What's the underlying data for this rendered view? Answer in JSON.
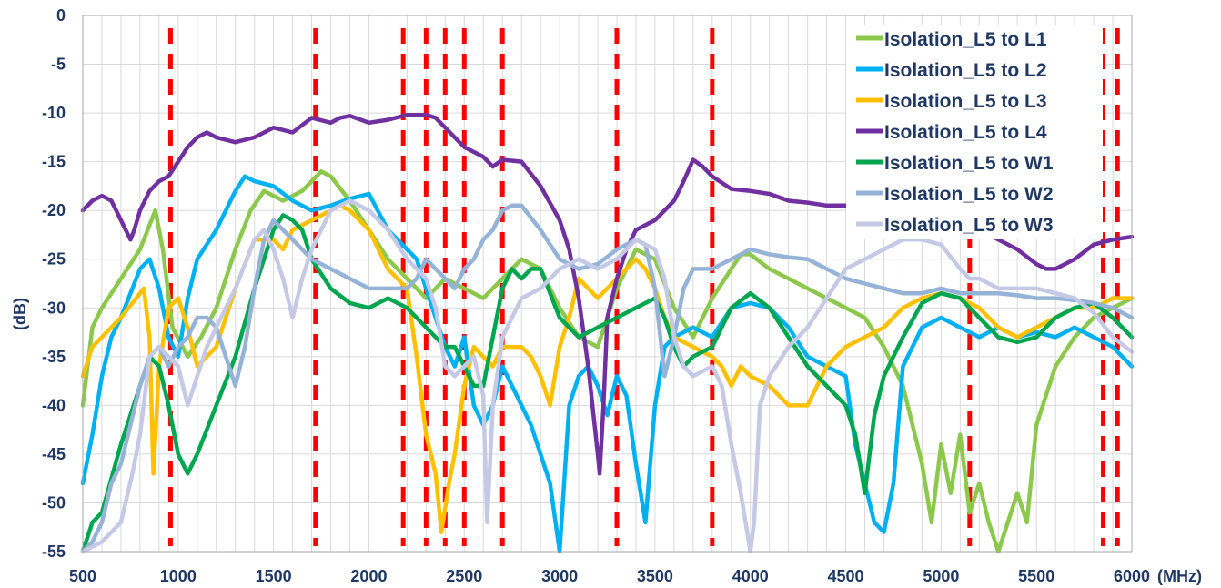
{
  "chart_data": {
    "type": "line",
    "xlabel": "(MHz)",
    "ylabel": "(dB)",
    "xlim": [
      500,
      6000
    ],
    "ylim": [
      -55,
      0
    ],
    "x_ticks": [
      500,
      1000,
      1500,
      2000,
      2500,
      3000,
      3500,
      4000,
      4500,
      5000,
      5500,
      6000
    ],
    "y_ticks": [
      0,
      -5,
      -10,
      -15,
      -20,
      -25,
      -30,
      -35,
      -40,
      -45,
      -50,
      -55
    ],
    "grid": true,
    "legend_position": "top-right",
    "band_markers_mhz": [
      960,
      1720,
      2180,
      2300,
      2400,
      2500,
      2700,
      3300,
      3800,
      5150,
      5850,
      5925
    ],
    "band_marker_color": "#ff0000",
    "series": [
      {
        "name": "Isolation_L5 to L1",
        "color": "#8cc84b",
        "x": [
          500,
          550,
          600,
          700,
          800,
          880,
          920,
          970,
          1050,
          1120,
          1200,
          1300,
          1380,
          1450,
          1550,
          1650,
          1700,
          1750,
          1800,
          1900,
          2000,
          2100,
          2200,
          2300,
          2400,
          2500,
          2600,
          2700,
          2800,
          2900,
          3000,
          3100,
          3200,
          3300,
          3400,
          3500,
          3600,
          3700,
          3800,
          3900,
          3950,
          4000,
          4100,
          4200,
          4300,
          4400,
          4500,
          4600,
          4700,
          4800,
          4900,
          4950,
          5000,
          5050,
          5100,
          5150,
          5200,
          5250,
          5300,
          5350,
          5400,
          5450,
          5500,
          5600,
          5700,
          5800,
          5900,
          6000
        ],
        "y": [
          -40,
          -32,
          -30,
          -27,
          -24,
          -20,
          -24,
          -32,
          -35,
          -33,
          -30,
          -24,
          -20,
          -18,
          -19,
          -18,
          -17,
          -16,
          -16.5,
          -19,
          -22,
          -25,
          -27,
          -29,
          -27,
          -28,
          -29,
          -27,
          -25,
          -26,
          -30,
          -33,
          -34,
          -28,
          -24,
          -25,
          -30,
          -33,
          -29,
          -26,
          -24.5,
          -24.5,
          -26,
          -27,
          -28,
          -29,
          -30,
          -31,
          -34,
          -38,
          -46,
          -52,
          -44,
          -49,
          -43,
          -51,
          -48,
          -52,
          -55,
          -52,
          -49,
          -52,
          -42,
          -36,
          -33,
          -31,
          -30,
          -29
        ]
      },
      {
        "name": "Isolation_L5 to L2",
        "color": "#00b0f0",
        "x": [
          500,
          550,
          600,
          650,
          700,
          760,
          800,
          850,
          900,
          950,
          1000,
          1050,
          1100,
          1200,
          1250,
          1300,
          1350,
          1400,
          1500,
          1600,
          1700,
          1800,
          1900,
          2000,
          2100,
          2200,
          2250,
          2300,
          2350,
          2400,
          2450,
          2500,
          2550,
          2600,
          2650,
          2700,
          2750,
          2800,
          2850,
          2900,
          2950,
          3000,
          3050,
          3100,
          3150,
          3200,
          3250,
          3300,
          3350,
          3400,
          3450,
          3500,
          3550,
          3600,
          3700,
          3800,
          3900,
          4000,
          4100,
          4200,
          4300,
          4400,
          4500,
          4550,
          4600,
          4650,
          4700,
          4750,
          4800,
          4900,
          5000,
          5100,
          5200,
          5300,
          5400,
          5500,
          5600,
          5700,
          5800,
          5900,
          6000
        ],
        "y": [
          -48,
          -43,
          -37,
          -33,
          -31,
          -28,
          -26,
          -25,
          -28,
          -33,
          -35,
          -29,
          -25,
          -22,
          -20,
          -18,
          -16.5,
          -17,
          -17.5,
          -19,
          -20,
          -19.5,
          -18.8,
          -18.3,
          -22,
          -24,
          -25,
          -28,
          -31,
          -34,
          -36,
          -33,
          -40,
          -42,
          -40,
          -36,
          -38,
          -40,
          -42,
          -45,
          -48,
          -55,
          -40,
          -37,
          -36,
          -38,
          -41,
          -37,
          -39,
          -46,
          -52,
          -40,
          -34,
          -33,
          -32,
          -33,
          -30,
          -29.5,
          -30,
          -32,
          -35,
          -36,
          -37,
          -44,
          -48,
          -52,
          -53,
          -48,
          -36,
          -32,
          -31,
          -32,
          -33,
          -32,
          -33,
          -32.5,
          -33,
          -32,
          -33,
          -34,
          -36
        ]
      },
      {
        "name": "Isolation_L5 to L3",
        "color": "#ffc000",
        "x": [
          500,
          550,
          600,
          700,
          780,
          820,
          850,
          870,
          900,
          950,
          1000,
          1050,
          1100,
          1200,
          1300,
          1400,
          1500,
          1550,
          1600,
          1700,
          1800,
          1850,
          1900,
          2000,
          2100,
          2200,
          2250,
          2300,
          2350,
          2380,
          2420,
          2450,
          2500,
          2550,
          2600,
          2650,
          2700,
          2750,
          2800,
          2850,
          2900,
          2950,
          3000,
          3050,
          3100,
          3200,
          3300,
          3350,
          3400,
          3450,
          3500,
          3550,
          3600,
          3700,
          3800,
          3850,
          3900,
          3950,
          4000,
          4100,
          4200,
          4300,
          4400,
          4500,
          4600,
          4700,
          4800,
          4900,
          5000,
          5100,
          5200,
          5300,
          5400,
          5500,
          5600,
          5700,
          5800,
          5900,
          6000
        ],
        "y": [
          -37,
          -34,
          -33,
          -31,
          -29,
          -28,
          -33,
          -47,
          -36,
          -30,
          -29,
          -32,
          -36,
          -34,
          -28,
          -23,
          -23,
          -24,
          -22,
          -21,
          -20,
          -19.5,
          -20,
          -22,
          -26,
          -28,
          -35,
          -43,
          -47,
          -53,
          -48,
          -45,
          -38,
          -34,
          -35,
          -36,
          -34,
          -34,
          -34,
          -35,
          -37,
          -40,
          -34,
          -31,
          -27,
          -29,
          -27,
          -26,
          -25,
          -26,
          -28,
          -31,
          -33,
          -34,
          -35,
          -36,
          -38,
          -36,
          -37,
          -38,
          -40,
          -40,
          -36,
          -34,
          -33,
          -32,
          -30,
          -29,
          -28.5,
          -29,
          -30,
          -32,
          -33,
          -32,
          -31,
          -30,
          -30,
          -29,
          -29
        ]
      },
      {
        "name": "Isolation_L5 to L4",
        "color": "#7030a0",
        "x": [
          500,
          550,
          600,
          650,
          700,
          750,
          770,
          800,
          850,
          900,
          950,
          1000,
          1050,
          1100,
          1150,
          1200,
          1300,
          1400,
          1500,
          1600,
          1700,
          1800,
          1850,
          1900,
          2000,
          2100,
          2200,
          2300,
          2350,
          2400,
          2450,
          2500,
          2600,
          2650,
          2700,
          2800,
          2900,
          3000,
          3050,
          3100,
          3150,
          3200,
          3210,
          3230,
          3250,
          3300,
          3350,
          3400,
          3500,
          3600,
          3650,
          3700,
          3750,
          3800,
          3900,
          4000,
          4100,
          4200,
          4300,
          4400,
          4500,
          4600,
          4700,
          4800,
          4900,
          5000,
          5100,
          5200,
          5300,
          5400,
          5500,
          5550,
          5600,
          5700,
          5800,
          5900,
          6000
        ],
        "y": [
          -20,
          -19,
          -18.5,
          -19,
          -21,
          -23,
          -22,
          -20,
          -18,
          -17,
          -16.5,
          -15,
          -13.5,
          -12.5,
          -12,
          -12.5,
          -13,
          -12.5,
          -11.5,
          -12,
          -10.5,
          -11,
          -10.5,
          -10.3,
          -11,
          -10.7,
          -10.2,
          -10.2,
          -10.5,
          -11.5,
          -12.5,
          -13.5,
          -14.5,
          -15.5,
          -14.8,
          -15,
          -17.5,
          -21,
          -24,
          -29,
          -36,
          -45,
          -47,
          -40,
          -31,
          -27,
          -24,
          -22,
          -21,
          -19,
          -17,
          -14.8,
          -15.5,
          -16.5,
          -17.8,
          -18,
          -18.3,
          -19,
          -19.2,
          -19.5,
          -19.5,
          -19.3,
          -19.5,
          -20,
          -20.5,
          -21,
          -21.5,
          -22,
          -23,
          -24,
          -25.5,
          -26,
          -26,
          -25,
          -23.5,
          -23,
          -22.7
        ]
      },
      {
        "name": "Isolation_L5 to W1",
        "color": "#00a550",
        "x": [
          500,
          550,
          600,
          700,
          800,
          850,
          900,
          950,
          1000,
          1050,
          1100,
          1200,
          1300,
          1400,
          1500,
          1550,
          1600,
          1650,
          1700,
          1800,
          1900,
          2000,
          2100,
          2200,
          2300,
          2350,
          2400,
          2450,
          2500,
          2550,
          2600,
          2650,
          2700,
          2750,
          2800,
          2850,
          2900,
          3000,
          3100,
          3200,
          3300,
          3400,
          3500,
          3550,
          3600,
          3650,
          3700,
          3800,
          3900,
          4000,
          4100,
          4200,
          4300,
          4400,
          4500,
          4550,
          4600,
          4650,
          4700,
          4800,
          4900,
          5000,
          5100,
          5200,
          5300,
          5400,
          5500,
          5600,
          5700,
          5800,
          5900,
          6000
        ],
        "y": [
          -55,
          -52,
          -51,
          -44,
          -38,
          -35,
          -36,
          -40,
          -45,
          -47,
          -45,
          -40,
          -35,
          -28,
          -22,
          -20.5,
          -21,
          -22,
          -25,
          -28,
          -29.5,
          -30,
          -29,
          -30,
          -32,
          -33,
          -34,
          -34,
          -36,
          -38,
          -38,
          -33,
          -28,
          -26,
          -27,
          -26,
          -26,
          -31,
          -33,
          -32,
          -31,
          -30,
          -29,
          -31,
          -34,
          -36,
          -35,
          -34,
          -30,
          -28.5,
          -30,
          -33,
          -36,
          -38,
          -40,
          -43,
          -49,
          -41,
          -37,
          -33,
          -29.5,
          -28.5,
          -29,
          -31,
          -33,
          -33.5,
          -33,
          -31,
          -30,
          -29.5,
          -31,
          -33
        ]
      },
      {
        "name": "Isolation_L5 to W2",
        "color": "#95b3d7",
        "x": [
          500,
          550,
          600,
          650,
          700,
          750,
          800,
          850,
          900,
          950,
          1000,
          1050,
          1100,
          1150,
          1200,
          1250,
          1300,
          1350,
          1400,
          1450,
          1500,
          1600,
          1700,
          1800,
          1900,
          2000,
          2100,
          2200,
          2250,
          2300,
          2350,
          2400,
          2450,
          2500,
          2550,
          2600,
          2650,
          2700,
          2750,
          2800,
          2900,
          3000,
          3100,
          3200,
          3300,
          3400,
          3450,
          3500,
          3550,
          3600,
          3650,
          3700,
          3800,
          3900,
          4000,
          4100,
          4200,
          4300,
          4400,
          4500,
          4600,
          4700,
          4800,
          4900,
          5000,
          5100,
          5200,
          5300,
          5400,
          5500,
          5600,
          5700,
          5800,
          5900,
          6000
        ],
        "y": [
          -55,
          -54,
          -52,
          -48,
          -46,
          -42,
          -38,
          -35,
          -34,
          -36,
          -34,
          -33,
          -31,
          -31,
          -32,
          -35,
          -38,
          -34,
          -28,
          -23,
          -21,
          -23,
          -25,
          -26,
          -27,
          -28,
          -28,
          -28,
          -27,
          -25,
          -26,
          -27,
          -28,
          -26,
          -25,
          -23,
          -22,
          -20,
          -19.5,
          -19.5,
          -22,
          -25,
          -26,
          -25.5,
          -24,
          -23,
          -23.5,
          -28,
          -37,
          -33,
          -28,
          -26,
          -26,
          -25,
          -24,
          -24.5,
          -24.8,
          -25,
          -26,
          -27,
          -27.5,
          -28,
          -28.5,
          -28.5,
          -28,
          -28.5,
          -28.5,
          -28.5,
          -28.7,
          -29,
          -29,
          -29.2,
          -29.5,
          -30,
          -31
        ]
      },
      {
        "name": "Isolation_L5 to W3",
        "color": "#c5c9e6",
        "x": [
          500,
          600,
          700,
          760,
          800,
          850,
          900,
          1000,
          1050,
          1100,
          1150,
          1200,
          1300,
          1400,
          1450,
          1500,
          1550,
          1600,
          1650,
          1700,
          1800,
          1900,
          2000,
          2100,
          2200,
          2300,
          2350,
          2400,
          2450,
          2500,
          2550,
          2600,
          2620,
          2650,
          2700,
          2800,
          2900,
          3000,
          3100,
          3200,
          3300,
          3400,
          3500,
          3550,
          3600,
          3650,
          3700,
          3800,
          3850,
          3900,
          3950,
          4000,
          4020,
          4050,
          4100,
          4200,
          4300,
          4400,
          4500,
          4600,
          4700,
          4800,
          4900,
          5000,
          5100,
          5150,
          5200,
          5300,
          5400,
          5500,
          5600,
          5700,
          5800,
          5900,
          6000
        ],
        "y": [
          -55,
          -54,
          -52,
          -47,
          -43,
          -35,
          -34,
          -36,
          -40,
          -37,
          -34,
          -32,
          -28,
          -23,
          -22,
          -24,
          -27,
          -31,
          -27,
          -24,
          -20,
          -19,
          -20,
          -22,
          -25,
          -27,
          -30,
          -36,
          -37,
          -36,
          -35,
          -39,
          -52,
          -40,
          -33,
          -29,
          -28,
          -26,
          -25,
          -26,
          -25,
          -23,
          -24,
          -27,
          -33,
          -36,
          -37,
          -36,
          -38,
          -44,
          -49,
          -55,
          -52,
          -40,
          -37,
          -34,
          -32,
          -29,
          -26,
          -25,
          -24,
          -23,
          -23,
          -23.5,
          -26,
          -27,
          -27,
          -28,
          -28,
          -28,
          -28.5,
          -29,
          -30.5,
          -33,
          -34.5
        ]
      }
    ]
  }
}
